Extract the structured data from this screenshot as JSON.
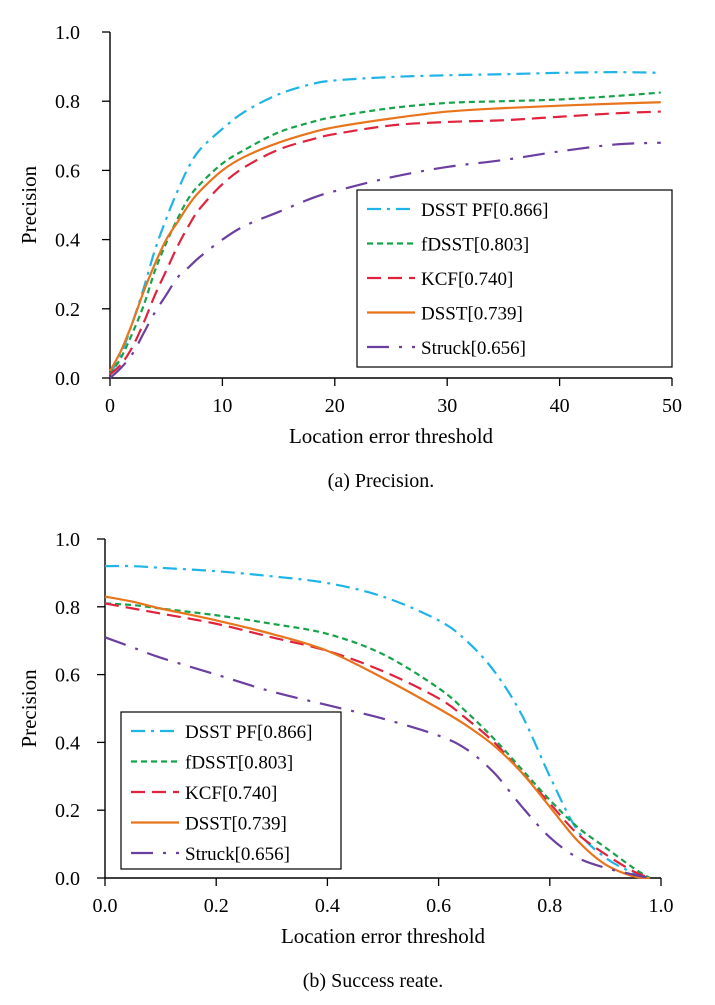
{
  "chart_data": [
    {
      "type": "line",
      "caption": "(a)  Precision.",
      "xlabel": "Location error threshold",
      "ylabel": "Precision",
      "xlim": [
        0,
        50
      ],
      "ylim": [
        0,
        1.0
      ],
      "xticks": [
        0,
        10,
        20,
        30,
        40,
        50
      ],
      "xtick_labels": [
        "0",
        "10",
        "20",
        "30",
        "40",
        "50"
      ],
      "yticks": [
        0,
        0.2,
        0.4,
        0.6,
        0.8,
        1.0
      ],
      "ytick_labels": [
        "0.0",
        "0.2",
        "0.4",
        "0.6",
        "0.8",
        "1.0"
      ],
      "grid": false,
      "legend_position": "center-right",
      "series": [
        {
          "name": "DSST PF[0.866]",
          "color": "#1fb4e6",
          "dash": "dashdot",
          "x": [
            0,
            1,
            2,
            3,
            4,
            5,
            6,
            7,
            8,
            10,
            12,
            15,
            18,
            20,
            25,
            30,
            35,
            40,
            45,
            49
          ],
          "y": [
            0.01,
            0.07,
            0.16,
            0.26,
            0.37,
            0.46,
            0.54,
            0.61,
            0.66,
            0.72,
            0.77,
            0.82,
            0.85,
            0.86,
            0.87,
            0.875,
            0.878,
            0.882,
            0.884,
            0.882
          ]
        },
        {
          "name": "fDSST[0.803]",
          "color": "#16a34a",
          "dash": "dashed",
          "x": [
            0,
            1,
            2,
            3,
            4,
            5,
            6,
            7,
            8,
            10,
            12,
            15,
            18,
            20,
            25,
            30,
            35,
            40,
            45,
            49
          ],
          "y": [
            0.01,
            0.06,
            0.13,
            0.21,
            0.31,
            0.39,
            0.46,
            0.52,
            0.56,
            0.62,
            0.66,
            0.71,
            0.74,
            0.755,
            0.78,
            0.795,
            0.8,
            0.805,
            0.815,
            0.825
          ]
        },
        {
          "name": "KCF[0.740]",
          "color": "#e0223c",
          "dash": "longdash",
          "x": [
            0,
            1,
            2,
            3,
            4,
            5,
            6,
            7,
            8,
            10,
            12,
            15,
            18,
            20,
            25,
            30,
            35,
            40,
            45,
            49
          ],
          "y": [
            0.01,
            0.04,
            0.09,
            0.16,
            0.24,
            0.31,
            0.38,
            0.44,
            0.49,
            0.56,
            0.61,
            0.66,
            0.69,
            0.705,
            0.73,
            0.74,
            0.745,
            0.755,
            0.765,
            0.77
          ]
        },
        {
          "name": "DSST[0.739]",
          "color": "#e8741c",
          "dash": "solid",
          "x": [
            0,
            1,
            2,
            3,
            4,
            5,
            6,
            7,
            8,
            10,
            12,
            15,
            18,
            20,
            25,
            30,
            35,
            40,
            45,
            49
          ],
          "y": [
            0.02,
            0.08,
            0.16,
            0.25,
            0.33,
            0.4,
            0.45,
            0.5,
            0.54,
            0.6,
            0.64,
            0.68,
            0.71,
            0.725,
            0.75,
            0.77,
            0.78,
            0.787,
            0.793,
            0.797
          ]
        },
        {
          "name": "Struck[0.656]",
          "color": "#6b3fa0",
          "dash": "longdashdot",
          "x": [
            0,
            1,
            2,
            3,
            4,
            5,
            6,
            7,
            8,
            10,
            12,
            15,
            18,
            20,
            25,
            30,
            35,
            40,
            45,
            49
          ],
          "y": [
            0.0,
            0.03,
            0.07,
            0.13,
            0.19,
            0.24,
            0.29,
            0.32,
            0.35,
            0.4,
            0.44,
            0.48,
            0.52,
            0.54,
            0.58,
            0.61,
            0.63,
            0.655,
            0.675,
            0.68
          ]
        }
      ]
    },
    {
      "type": "line",
      "caption": "(b)  Success reate.",
      "xlabel": "Location error threshold",
      "ylabel": "Precision",
      "xlim": [
        0,
        1.0
      ],
      "ylim": [
        0,
        1.0
      ],
      "xticks": [
        0,
        0.2,
        0.4,
        0.6,
        0.8,
        1.0
      ],
      "xtick_labels": [
        "0.0",
        "0.2",
        "0.4",
        "0.6",
        "0.8",
        "1.0"
      ],
      "yticks": [
        0,
        0.2,
        0.4,
        0.6,
        0.8,
        1.0
      ],
      "ytick_labels": [
        "0.0",
        "0.2",
        "0.4",
        "0.6",
        "0.8",
        "1.0"
      ],
      "grid": false,
      "legend_position": "bottom-left",
      "series": [
        {
          "name": "DSST PF[0.866]",
          "color": "#1fb4e6",
          "dash": "dashdot",
          "x": [
            0,
            0.05,
            0.1,
            0.2,
            0.3,
            0.4,
            0.5,
            0.6,
            0.65,
            0.7,
            0.75,
            0.8,
            0.85,
            0.9,
            0.95,
            0.98
          ],
          "y": [
            0.92,
            0.92,
            0.915,
            0.905,
            0.89,
            0.87,
            0.83,
            0.76,
            0.7,
            0.61,
            0.48,
            0.3,
            0.14,
            0.06,
            0.015,
            0.0
          ]
        },
        {
          "name": "fDSST[0.803]",
          "color": "#16a34a",
          "dash": "dashed",
          "x": [
            0,
            0.05,
            0.1,
            0.2,
            0.3,
            0.4,
            0.5,
            0.6,
            0.65,
            0.7,
            0.75,
            0.8,
            0.85,
            0.9,
            0.95,
            0.98
          ],
          "y": [
            0.81,
            0.805,
            0.795,
            0.775,
            0.75,
            0.72,
            0.66,
            0.56,
            0.49,
            0.41,
            0.32,
            0.23,
            0.15,
            0.09,
            0.03,
            0.0
          ]
        },
        {
          "name": "KCF[0.740]",
          "color": "#e0223c",
          "dash": "longdash",
          "x": [
            0,
            0.05,
            0.1,
            0.2,
            0.3,
            0.4,
            0.5,
            0.6,
            0.65,
            0.7,
            0.75,
            0.8,
            0.85,
            0.9,
            0.95,
            0.98
          ],
          "y": [
            0.81,
            0.795,
            0.78,
            0.75,
            0.71,
            0.67,
            0.61,
            0.53,
            0.47,
            0.4,
            0.31,
            0.22,
            0.13,
            0.07,
            0.02,
            0.0
          ]
        },
        {
          "name": "DSST[0.739]",
          "color": "#e8741c",
          "dash": "solid",
          "x": [
            0,
            0.05,
            0.1,
            0.2,
            0.3,
            0.4,
            0.5,
            0.6,
            0.65,
            0.7,
            0.75,
            0.8,
            0.85,
            0.9,
            0.95,
            0.98
          ],
          "y": [
            0.83,
            0.815,
            0.795,
            0.76,
            0.72,
            0.67,
            0.59,
            0.5,
            0.45,
            0.39,
            0.31,
            0.21,
            0.11,
            0.04,
            0.005,
            0.0
          ]
        },
        {
          "name": "Struck[0.656]",
          "color": "#6b3fa0",
          "dash": "longdashdot",
          "x": [
            0,
            0.05,
            0.1,
            0.2,
            0.3,
            0.4,
            0.5,
            0.6,
            0.65,
            0.7,
            0.75,
            0.8,
            0.85,
            0.9,
            0.95,
            0.98
          ],
          "y": [
            0.71,
            0.68,
            0.65,
            0.6,
            0.55,
            0.51,
            0.47,
            0.42,
            0.38,
            0.31,
            0.21,
            0.12,
            0.06,
            0.03,
            0.01,
            0.0
          ]
        }
      ]
    }
  ]
}
